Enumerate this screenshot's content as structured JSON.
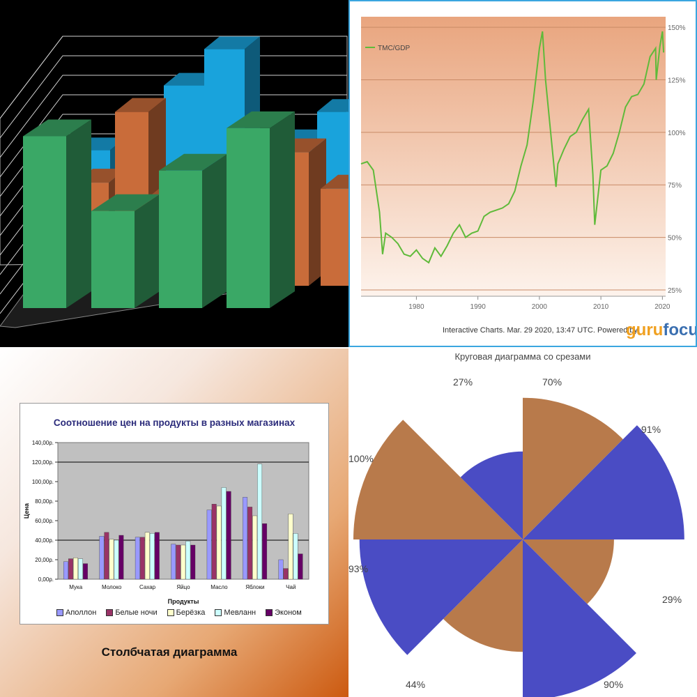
{
  "chart_data": [
    {
      "type": "bar",
      "title": "",
      "xlabel": "",
      "ylabel": "",
      "series": [
        {
          "name": "",
          "values": [
            5.4,
            8.6,
            10.4,
            5.8,
            7.3,
            10.0
          ],
          "color": "#19a3dc"
        },
        {
          "name": "",
          "values": [
            5.1,
            8.6,
            4.3,
            5.4,
            6.6,
            4.8
          ],
          "color": "#c96c3a"
        },
        {
          "name": "",
          "values": [
            8.5,
            4.8,
            6.8,
            8.9
          ],
          "color": "#3aa866"
        }
      ],
      "grid": true
    },
    {
      "type": "line",
      "title": "",
      "legend": "top-left",
      "xlabel": "",
      "ylabel": "",
      "x_ticks": [
        "1980",
        "1990",
        "2000",
        "2010",
        "2020"
      ],
      "y_ticks": [
        "25%",
        "50%",
        "75%",
        "100%",
        "125%",
        "150%"
      ],
      "ylim": [
        25,
        155
      ],
      "xlim": [
        1971,
        2020.3
      ],
      "series": [
        {
          "name": "TMC/GDP",
          "color": "#5fba3a",
          "x": [
            1971,
            1972,
            1973,
            1974,
            1974.5,
            1975,
            1976,
            1977,
            1978,
            1979,
            1980,
            1981,
            1982,
            1983,
            1984,
            1985,
            1986,
            1987,
            1988,
            1989,
            1990,
            1991,
            1992,
            1993,
            1994,
            1995,
            1996,
            1997,
            1998,
            1999,
            2000,
            2000.5,
            2001,
            2002,
            2002.7,
            2003,
            2004,
            2005,
            2006,
            2007,
            2008,
            2008.7,
            2009,
            2010,
            2011,
            2012,
            2013,
            2014,
            2015,
            2016,
            2017,
            2018,
            2018.9,
            2019,
            2019.6,
            2020,
            2020.2
          ],
          "y": [
            85,
            86,
            82,
            62,
            42,
            52,
            50,
            47,
            42,
            41,
            44,
            40,
            38,
            45,
            41,
            46,
            52,
            56,
            50,
            52,
            53,
            60,
            62,
            63,
            64,
            66,
            72,
            84,
            94,
            115,
            140,
            148,
            125,
            95,
            74,
            85,
            92,
            98,
            100,
            106,
            111,
            80,
            56,
            82,
            84,
            90,
            100,
            112,
            117,
            118,
            123,
            136,
            140,
            125,
            141,
            148,
            138
          ]
        }
      ]
    },
    {
      "type": "bar",
      "title": "Соотношение цен на продукты в разных магазинах",
      "xlabel": "Продукты",
      "ylabel": "Цена",
      "ylim": [
        0,
        140
      ],
      "grid": true,
      "legend": "bottom",
      "y_ticks": [
        "0,00р.",
        "20,00р.",
        "40,00р.",
        "60,00р.",
        "80,00р.",
        "100,00р.",
        "120,00р.",
        "140,00р."
      ],
      "categories": [
        "Мука",
        "Молоко",
        "Сахар",
        "Яйцо",
        "Масло",
        "Яблоки",
        "Чай"
      ],
      "series": [
        {
          "name": "Аполлон",
          "color": "#9999ff",
          "values": [
            18,
            44,
            43,
            36,
            71,
            84,
            20
          ]
        },
        {
          "name": "Белые ночи",
          "color": "#993366",
          "values": [
            21,
            48,
            43,
            35,
            77,
            74,
            11
          ]
        },
        {
          "name": "Берёзка",
          "color": "#ffffcc",
          "values": [
            22,
            41,
            48,
            35,
            75,
            65,
            67
          ]
        },
        {
          "name": "Мевланн",
          "color": "#ccffff",
          "values": [
            21,
            40,
            47,
            39,
            94,
            118,
            47
          ]
        },
        {
          "name": "Эконом",
          "color": "#660066",
          "values": [
            16,
            45,
            48,
            35,
            90,
            57,
            26
          ]
        }
      ]
    },
    {
      "type": "pie",
      "title": "Круговая диаграмма со срезами",
      "slices": [
        {
          "label": "70%",
          "value": 0.7,
          "color": "#b87a4b"
        },
        {
          "label": "91%",
          "value": 0.91,
          "color": "#4a4cc4"
        },
        {
          "label": "29%",
          "value": 0.29,
          "color": "#b87a4b"
        },
        {
          "label": "90%",
          "value": 0.9,
          "color": "#4a4cc4"
        },
        {
          "label": "44%",
          "value": 0.44,
          "color": "#b87a4b"
        },
        {
          "label": "93%",
          "value": 0.93,
          "color": "#4a4cc4"
        },
        {
          "label": "100%",
          "value": 1.0,
          "color": "#b87a4b"
        },
        {
          "label": "27%",
          "value": 0.27,
          "color": "#4a4cc4"
        }
      ]
    }
  ],
  "caption": "Столбчатая диаграмма",
  "footer": {
    "text": "Interactive Charts. Mar. 29 2020, 13:47 UTC. Powered by",
    "brand_part1": "guru",
    "brand_part2": "focus"
  }
}
